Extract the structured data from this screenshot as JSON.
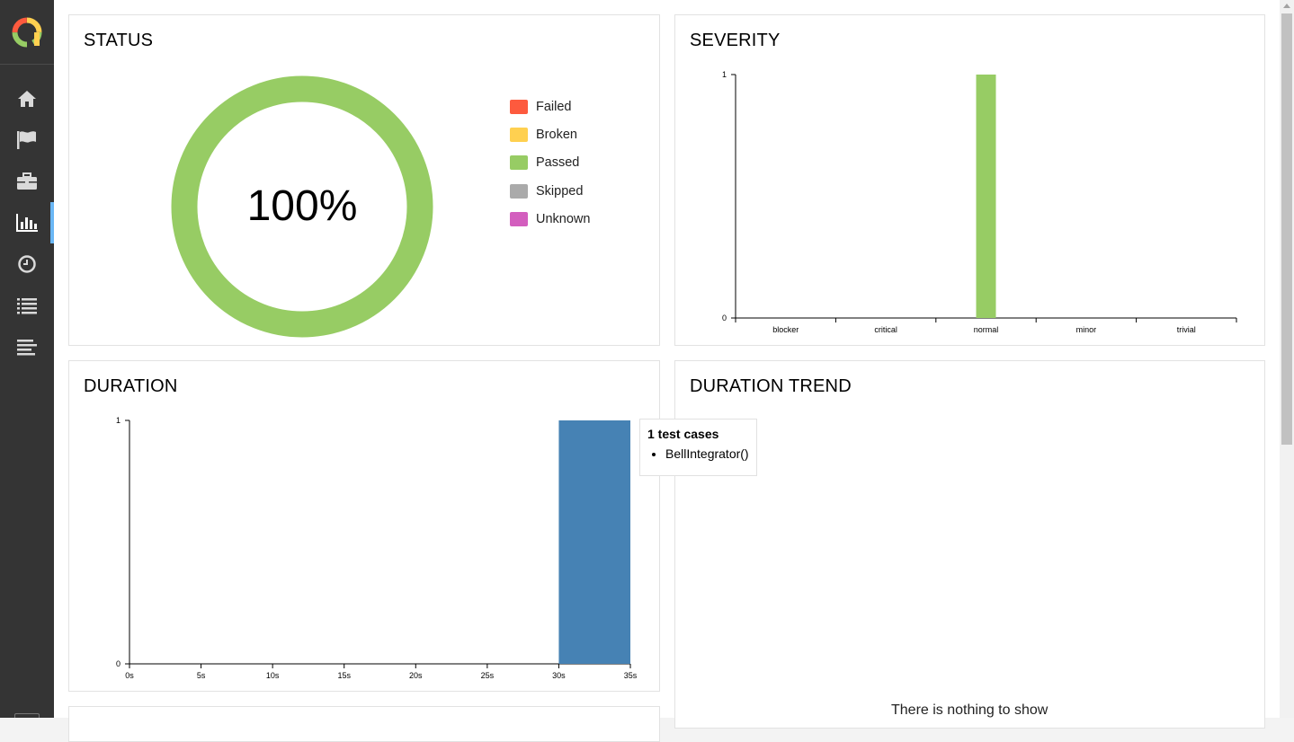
{
  "sidebar": {
    "items": [
      {
        "icon": "home-icon"
      },
      {
        "icon": "flag-icon"
      },
      {
        "icon": "briefcase-icon"
      },
      {
        "icon": "bar-chart-icon",
        "active": true
      },
      {
        "icon": "clock-icon"
      },
      {
        "icon": "list-icon"
      },
      {
        "icon": "timeline-icon"
      }
    ]
  },
  "status": {
    "title": "STATUS",
    "percent_label": "100%",
    "legend": [
      {
        "label": "Failed",
        "color": "#fd5a3e"
      },
      {
        "label": "Broken",
        "color": "#ffd050"
      },
      {
        "label": "Passed",
        "color": "#97cc64"
      },
      {
        "label": "Skipped",
        "color": "#aaaaaa"
      },
      {
        "label": "Unknown",
        "color": "#d35ebe"
      }
    ]
  },
  "severity": {
    "title": "SEVERITY"
  },
  "duration": {
    "title": "DURATION",
    "tooltip": {
      "title": "1 test cases",
      "items": [
        "BellIntegrator()"
      ]
    }
  },
  "duration_trend": {
    "title": "DURATION TREND",
    "empty_message": "There is nothing to show"
  },
  "chart_data": [
    {
      "type": "pie",
      "title": "STATUS",
      "categories": [
        "Failed",
        "Broken",
        "Passed",
        "Skipped",
        "Unknown"
      ],
      "values": [
        0,
        0,
        1,
        0,
        0
      ],
      "colors": [
        "#fd5a3e",
        "#ffd050",
        "#97cc64",
        "#aaaaaa",
        "#d35ebe"
      ],
      "center_label": "100%",
      "legend_placement": "right"
    },
    {
      "type": "bar",
      "title": "SEVERITY",
      "categories": [
        "blocker",
        "critical",
        "normal",
        "minor",
        "trivial"
      ],
      "values": [
        0,
        0,
        1,
        0,
        0
      ],
      "color": "#97cc64",
      "yticks": [
        "0",
        "1"
      ],
      "ylim": [
        0,
        1
      ]
    },
    {
      "type": "bar",
      "title": "DURATION",
      "xticks": [
        "0s",
        "5s",
        "10s",
        "15s",
        "20s",
        "25s",
        "30s",
        "35s"
      ],
      "xlim": [
        0,
        35
      ],
      "bins": [
        {
          "x0": 30,
          "x1": 35,
          "count": 1
        }
      ],
      "color": "#4682b4",
      "yticks": [
        "0",
        "1"
      ],
      "ylim": [
        0,
        1
      ]
    }
  ]
}
